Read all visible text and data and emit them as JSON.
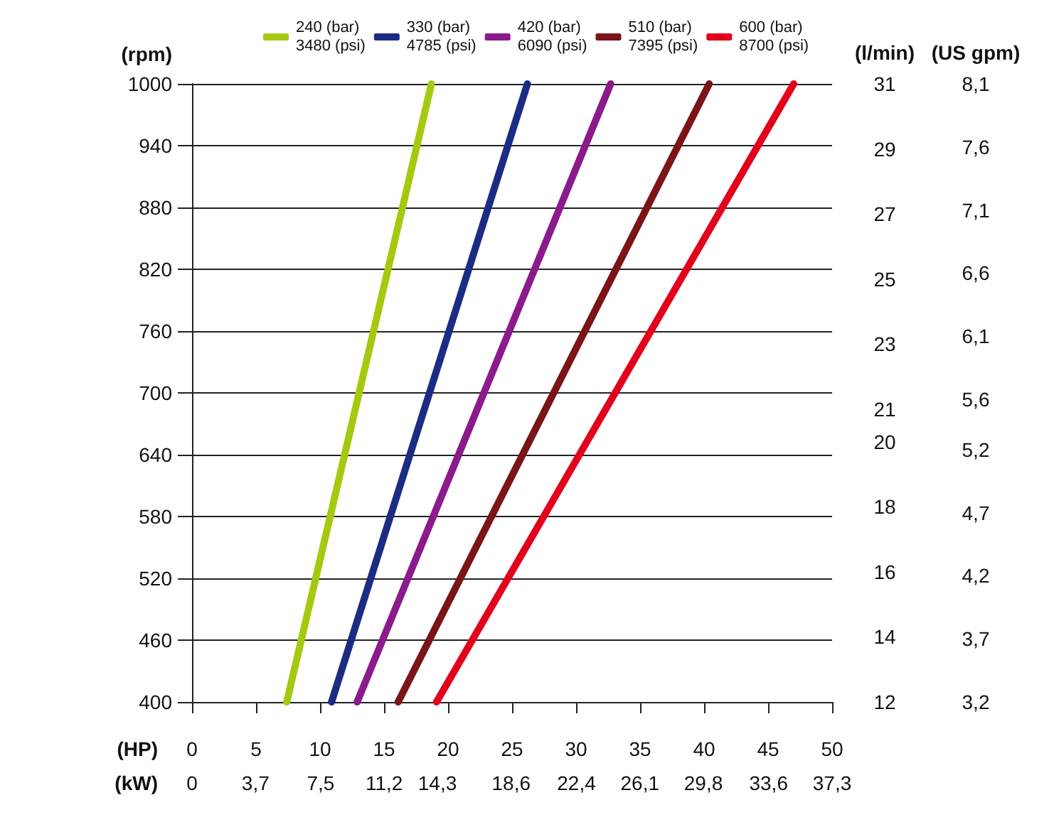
{
  "chart_data": {
    "type": "line",
    "xlabel": "(HP)",
    "x2label": "(kW)",
    "ylabel": "(rpm)",
    "y2label": "(l/min)",
    "y3label": "(US gpm)",
    "xlim": [
      0,
      50
    ],
    "xticks": [
      0,
      5,
      10,
      15,
      20,
      25,
      30,
      35,
      40,
      45,
      50
    ],
    "x2lim": [
      0,
      37.3
    ],
    "x2ticks": [
      0,
      {
        "value": 3.7,
        "label": "3,7"
      },
      {
        "value": 7.5,
        "label": "7,5"
      },
      {
        "value": 11.2,
        "label": "11,2"
      },
      {
        "value": 14.3,
        "label": "14,3"
      },
      {
        "value": 18.6,
        "label": "18,6"
      },
      {
        "value": 22.4,
        "label": "22,4"
      },
      {
        "value": 26.1,
        "label": "26,1"
      },
      {
        "value": 29.8,
        "label": "29,8"
      },
      {
        "value": 33.6,
        "label": "33,6"
      },
      {
        "value": 37.3,
        "label": "37,3"
      }
    ],
    "ylim": [
      400,
      1000
    ],
    "yticks": [
      400,
      460,
      520,
      580,
      640,
      700,
      760,
      820,
      880,
      940,
      1000
    ],
    "y2lim": [
      12,
      31
    ],
    "y2ticks": [
      12,
      14,
      16,
      18,
      20,
      21,
      23,
      25,
      27,
      29,
      31
    ],
    "y3lim": [
      3.2,
      8.1
    ],
    "y3ticks": [
      {
        "value": 3.2,
        "label": "3,2"
      },
      {
        "value": 3.7,
        "label": "3,7"
      },
      {
        "value": 4.2,
        "label": "4,2"
      },
      {
        "value": 4.7,
        "label": "4,7"
      },
      {
        "value": 5.2,
        "label": "5,2"
      },
      {
        "value": 5.6,
        "label": "5,6"
      },
      {
        "value": 6.1,
        "label": "6,1"
      },
      {
        "value": 6.6,
        "label": "6,6"
      },
      {
        "value": 7.1,
        "label": "7,1"
      },
      {
        "value": 7.6,
        "label": "7,6"
      },
      {
        "value": 8.1,
        "label": "8,1"
      }
    ],
    "grid": "y",
    "legend": "top",
    "marker": "none",
    "line_style": "solid",
    "series": [
      {
        "name": "240 (bar)\n3480 (psi)",
        "color": "#a5c90f",
        "x": [
          7.4,
          18.7
        ],
        "values": [
          400,
          1000
        ]
      },
      {
        "name": "330 (bar)\n4785 (psi)",
        "color": "#1b2c84",
        "x": [
          10.9,
          26.2
        ],
        "values": [
          400,
          1000
        ]
      },
      {
        "name": "420 (bar)\n6090 (psi)",
        "color": "#8b1a8b",
        "x": [
          12.9,
          32.7
        ],
        "values": [
          400,
          1000
        ]
      },
      {
        "name": "510 (bar)\n7395 (psi)",
        "color": "#7a1416",
        "x": [
          16.1,
          40.4
        ],
        "values": [
          400,
          1000
        ]
      },
      {
        "name": "600 (bar)\n8700 (psi)",
        "color": "#e3001b",
        "x": [
          19.1,
          47.0
        ],
        "values": [
          400,
          1000
        ]
      }
    ]
  }
}
